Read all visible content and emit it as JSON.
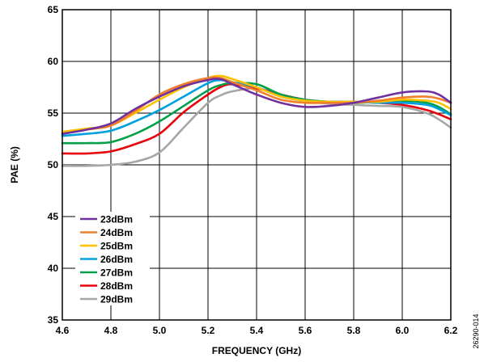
{
  "chart_data": {
    "type": "line",
    "title": "",
    "xlabel": "FREQUENCY (GHz)",
    "ylabel": "PAE (%)",
    "xlim": [
      4.6,
      6.2
    ],
    "ylim": [
      35,
      65
    ],
    "xticks": [
      "4.6",
      "4.8",
      "5.0",
      "5.2",
      "5.4",
      "5.6",
      "5.8",
      "6.0",
      "6.2"
    ],
    "yticks": [
      "35",
      "40",
      "45",
      "50",
      "55",
      "60",
      "65"
    ],
    "grid": true,
    "legend_position": "bottom-left",
    "figure_id": "26290-014",
    "x": [
      4.6,
      4.7,
      4.8,
      4.9,
      5.0,
      5.1,
      5.2,
      5.25,
      5.3,
      5.4,
      5.5,
      5.6,
      5.7,
      5.8,
      5.9,
      6.0,
      6.1,
      6.15,
      6.2
    ],
    "series": [
      {
        "name": "23dBm",
        "color": "#7030a0",
        "values": [
          53.0,
          53.4,
          54.0,
          55.4,
          56.6,
          57.6,
          58.2,
          58.3,
          57.8,
          56.8,
          56.0,
          55.6,
          55.7,
          56.0,
          56.5,
          57.0,
          57.1,
          56.8,
          56.0
        ]
      },
      {
        "name": "24dBm",
        "color": "#f07f2a",
        "values": [
          53.0,
          53.4,
          53.8,
          55.2,
          56.8,
          57.8,
          58.4,
          58.4,
          58.0,
          57.2,
          56.3,
          56.0,
          56.0,
          56.0,
          56.2,
          56.5,
          56.6,
          56.4,
          56.0
        ]
      },
      {
        "name": "25dBm",
        "color": "#ffc000",
        "values": [
          53.2,
          53.5,
          53.8,
          55.0,
          56.3,
          57.5,
          58.4,
          58.6,
          58.3,
          57.5,
          56.6,
          56.2,
          56.1,
          56.1,
          56.1,
          56.3,
          56.2,
          56.0,
          55.4
        ]
      },
      {
        "name": "26dBm",
        "color": "#00a0e0",
        "values": [
          52.8,
          53.0,
          53.3,
          54.2,
          55.3,
          56.6,
          57.9,
          58.2,
          58.0,
          57.5,
          56.6,
          56.2,
          56.1,
          56.1,
          56.0,
          56.0,
          55.8,
          55.4,
          54.8
        ]
      },
      {
        "name": "27dBm",
        "color": "#00a04a",
        "values": [
          52.1,
          52.1,
          52.2,
          53.0,
          54.2,
          55.7,
          57.2,
          57.7,
          57.9,
          57.8,
          56.8,
          56.3,
          56.1,
          56.0,
          56.1,
          56.2,
          56.0,
          55.6,
          54.9
        ]
      },
      {
        "name": "28dBm",
        "color": "#e8000b",
        "values": [
          51.1,
          51.1,
          51.3,
          52.0,
          53.0,
          55.1,
          56.8,
          57.5,
          57.8,
          57.4,
          56.8,
          56.3,
          56.1,
          56.1,
          56.0,
          55.8,
          55.3,
          54.9,
          54.4
        ]
      },
      {
        "name": "29dBm",
        "color": "#a6a6a6",
        "values": [
          49.9,
          49.9,
          50.0,
          50.3,
          51.2,
          53.6,
          56.0,
          56.7,
          57.1,
          57.4,
          56.8,
          56.2,
          55.9,
          55.8,
          55.7,
          55.6,
          55.0,
          54.4,
          53.6
        ]
      }
    ]
  }
}
